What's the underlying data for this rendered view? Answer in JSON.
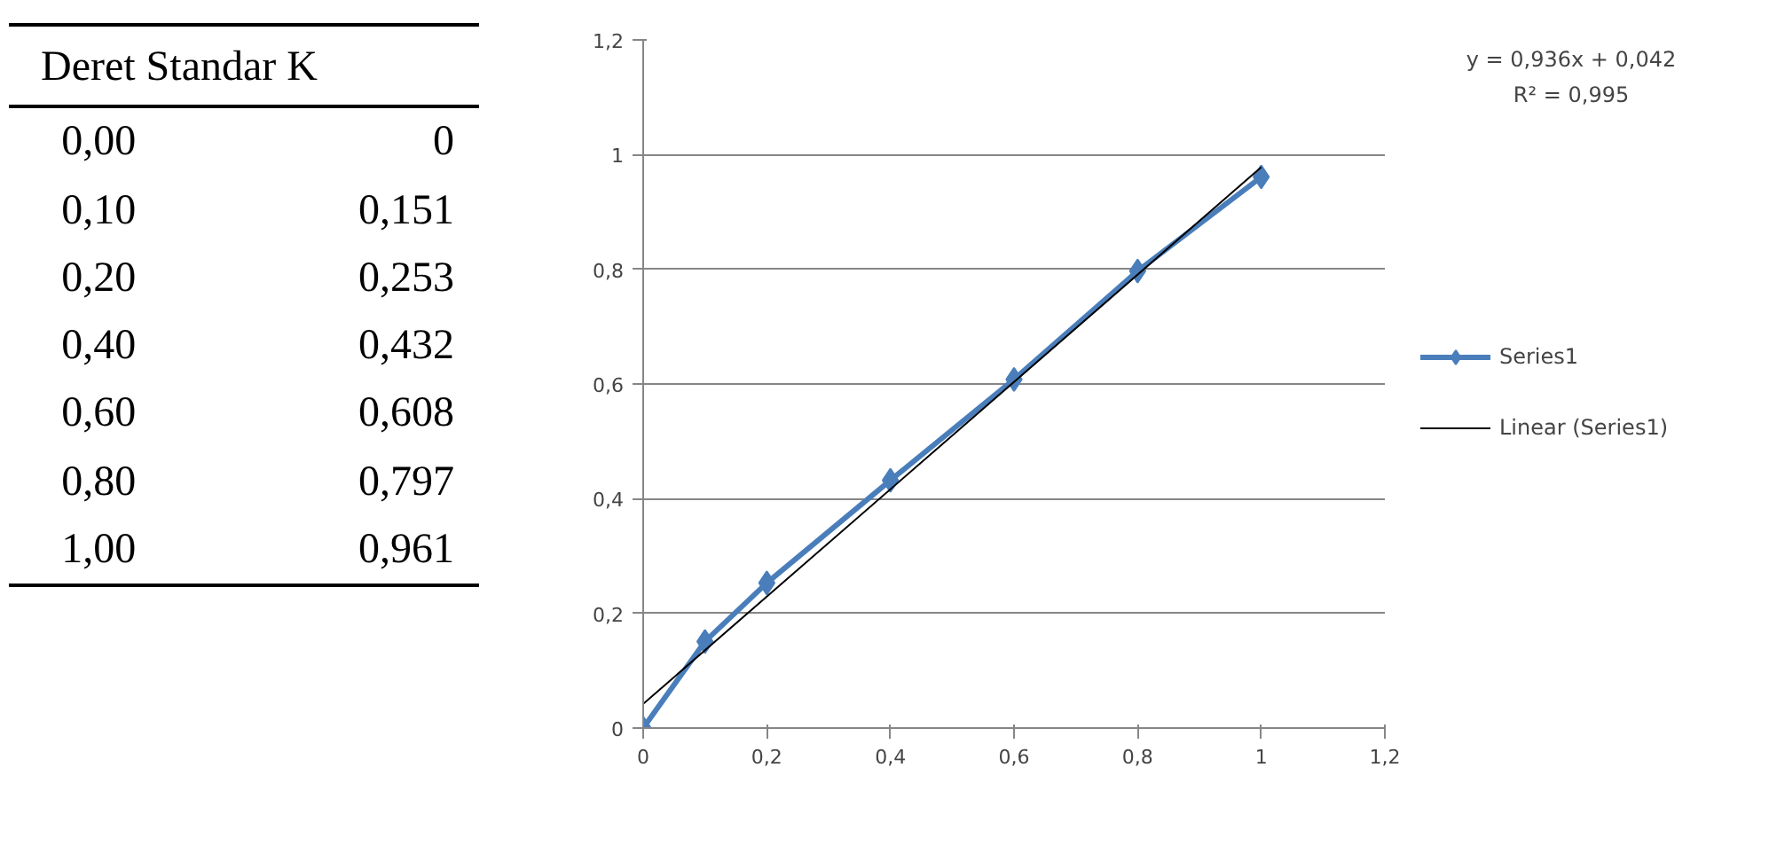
{
  "chart_data": [
    {
      "type": "other",
      "title": "Deret Standar K",
      "categories": [
        "0,00",
        "0,10",
        "0,20",
        "0,40",
        "0,60",
        "0,80",
        "1,00"
      ],
      "value_labels": [
        "0",
        "0,151",
        "0,253",
        "0,432",
        "0,608",
        "0,797",
        "0,961"
      ]
    },
    {
      "type": "line",
      "x": [
        0,
        0.1,
        0.2,
        0.4,
        0.6,
        0.8,
        1
      ],
      "series": [
        {
          "name": "Series1",
          "color": "#4a7ebb",
          "values": [
            0,
            0.151,
            0.253,
            0.432,
            0.608,
            0.797,
            0.961
          ],
          "marker": "diamond"
        },
        {
          "name": "Linear (Series1)",
          "type": "line",
          "color": "#000000",
          "x": [
            0,
            1
          ],
          "values": [
            0.042,
            0.978
          ],
          "marker": "none"
        }
      ],
      "annotations": [
        "y = 0,936x + 0,042",
        "R² = 0,995"
      ],
      "xlim": [
        0,
        1.2
      ],
      "ylim": [
        0,
        1.2
      ],
      "xticks": [
        0,
        {
          "value": 0.2,
          "label": "0,2"
        },
        {
          "value": 0.4,
          "label": "0,4"
        },
        {
          "value": 0.6,
          "label": "0,6"
        },
        {
          "value": 0.8,
          "label": "0,8"
        },
        1,
        {
          "value": 1.2,
          "label": "1,2"
        }
      ],
      "yticks": [
        0,
        {
          "value": 0.2,
          "label": "0,2"
        },
        {
          "value": 0.4,
          "label": "0,4"
        },
        {
          "value": 0.6,
          "label": "0,6"
        },
        {
          "value": 0.8,
          "label": "0,8"
        },
        1,
        {
          "value": 1.2,
          "label": "1,2"
        }
      ],
      "grid": "y",
      "legend": "right",
      "line_style": "solid"
    }
  ]
}
